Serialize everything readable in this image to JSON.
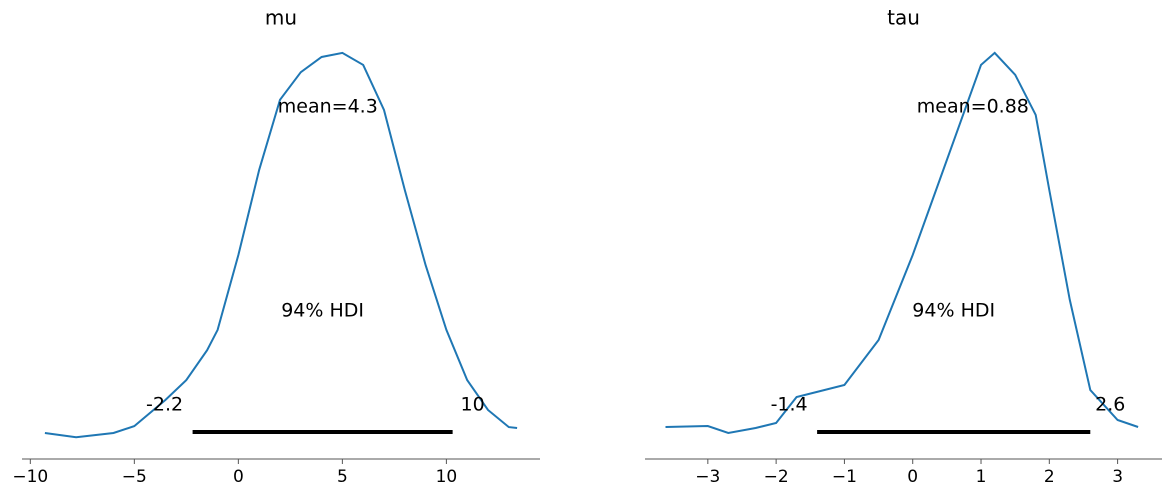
{
  "chart_data": [
    {
      "type": "kde",
      "title": "mu",
      "color": "#1f77b4",
      "x": [
        -9.3,
        -7.8,
        -6,
        -5,
        -3.5,
        -2.5,
        -1.5,
        -1,
        0,
        1,
        2,
        3,
        4,
        5,
        6,
        7,
        8,
        9,
        10,
        11,
        12,
        13,
        13.4
      ],
      "values": [
        0.0026,
        0.0017,
        0.0026,
        0.0041,
        0.0098,
        0.0141,
        0.0206,
        0.025,
        0.0413,
        0.0598,
        0.075,
        0.081,
        0.0843,
        0.0852,
        0.0826,
        0.0728,
        0.0554,
        0.0391,
        0.025,
        0.0141,
        0.0076,
        0.0039,
        0.0037
      ],
      "xlim": [
        -10.4,
        14.5
      ],
      "xticks": [
        {
          "value": -10,
          "label": "−10"
        },
        {
          "value": -5,
          "label": "−5"
        },
        0,
        5,
        10
      ],
      "ylim": [
        0,
        0.088
      ],
      "mean": 4.3,
      "mean_text": "mean=4.3",
      "hdi": {
        "values": [
          -2.2,
          10.3
        ],
        "value_labels": [
          "-2.2",
          "10"
        ]
      },
      "hdi_text": "94% HDI"
    },
    {
      "type": "kde",
      "title": "tau",
      "color": "#1f77b4",
      "x": [
        -3.62,
        -3,
        -2.7,
        -2.3,
        -2,
        -1.7,
        -1.4,
        -1,
        -0.5,
        0,
        0.5,
        1,
        1.2,
        1.5,
        1.8,
        2,
        2.3,
        2.6,
        3,
        3.3
      ],
      "values": [
        0.0178,
        0.0188,
        0.0119,
        0.0168,
        0.0217,
        0.0474,
        0.0524,
        0.0593,
        0.1037,
        0.1877,
        0.2816,
        0.3754,
        0.3873,
        0.3656,
        0.326,
        0.2519,
        0.1433,
        0.0543,
        0.0247,
        0.0178
      ],
      "xlim": [
        -3.92,
        3.65
      ],
      "xticks": [
        {
          "value": -3,
          "label": "−3"
        },
        {
          "value": -2,
          "label": "−2"
        },
        {
          "value": -1,
          "label": "−1"
        },
        0,
        1,
        2,
        3
      ],
      "ylim": [
        0,
        0.4
      ],
      "mean": 0.88,
      "mean_text": "mean=0.88",
      "hdi": {
        "values": [
          -1.4,
          2.6
        ],
        "value_labels": [
          "-1.4",
          "2.6"
        ]
      },
      "hdi_text": "94% HDI"
    }
  ]
}
